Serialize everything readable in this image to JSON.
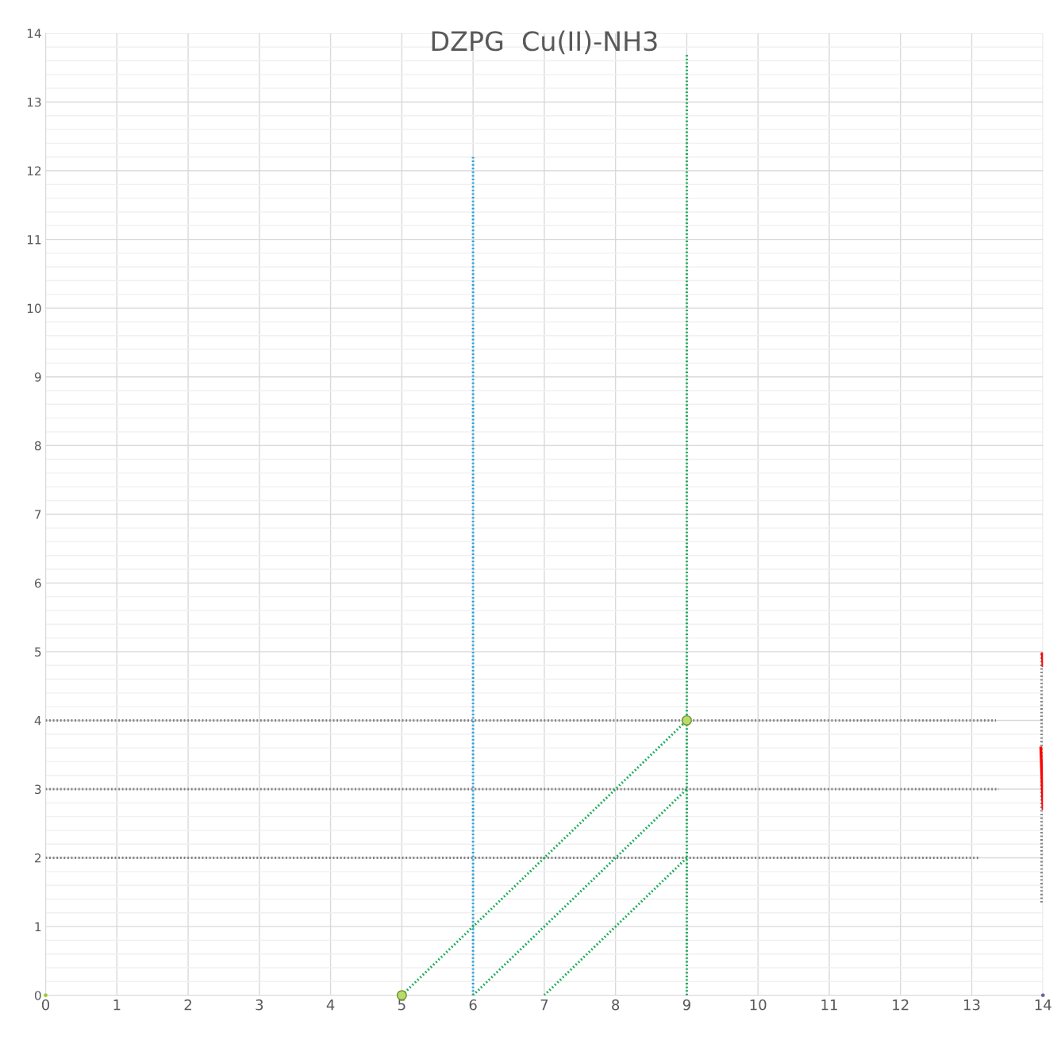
{
  "chart_data": {
    "type": "line",
    "title": "DZPG  Cu(II)-NH3",
    "xlim": [
      0,
      14
    ],
    "ylim": [
      0,
      14
    ],
    "xticks": [
      0,
      1,
      2,
      3,
      4,
      5,
      6,
      7,
      8,
      9,
      10,
      11,
      12,
      13,
      14
    ],
    "yticks": [
      0,
      {
        "value": 0.2,
        "label": null
      },
      {
        "value": 0.4,
        "label": null
      },
      {
        "value": 0.6,
        "label": null
      },
      {
        "value": 0.8,
        "label": null
      },
      1,
      {
        "value": 1.2,
        "label": null
      },
      {
        "value": 1.4,
        "label": null
      },
      {
        "value": 1.6,
        "label": null
      },
      {
        "value": 1.8,
        "label": null
      },
      2,
      {
        "value": 2.2,
        "label": null
      },
      {
        "value": 2.4,
        "label": null
      },
      {
        "value": 2.6,
        "label": null
      },
      {
        "value": 2.8,
        "label": null
      },
      3,
      {
        "value": 3.2,
        "label": null
      },
      {
        "value": 3.4,
        "label": null
      },
      {
        "value": 3.6,
        "label": null
      },
      {
        "value": 3.8,
        "label": null
      },
      4,
      {
        "value": 4.2,
        "label": null
      },
      {
        "value": 4.4,
        "label": null
      },
      {
        "value": 4.6,
        "label": null
      },
      {
        "value": 4.8,
        "label": null
      },
      5,
      {
        "value": 5.2,
        "label": null
      },
      {
        "value": 5.4,
        "label": null
      },
      {
        "value": 5.6,
        "label": null
      },
      {
        "value": 5.8,
        "label": null
      },
      6,
      {
        "value": 6.2,
        "label": null
      },
      {
        "value": 6.4,
        "label": null
      },
      {
        "value": 6.6,
        "label": null
      },
      {
        "value": 6.8,
        "label": null
      },
      7,
      {
        "value": 7.2,
        "label": null
      },
      {
        "value": 7.4,
        "label": null
      },
      {
        "value": 7.6,
        "label": null
      },
      {
        "value": 7.8,
        "label": null
      },
      8,
      {
        "value": 8.2,
        "label": null
      },
      {
        "value": 8.4,
        "label": null
      },
      {
        "value": 8.6,
        "label": null
      },
      {
        "value": 8.8,
        "label": null
      },
      9,
      {
        "value": 9.2,
        "label": null
      },
      {
        "value": 9.4,
        "label": null
      },
      {
        "value": 9.6,
        "label": null
      },
      {
        "value": 9.8,
        "label": null
      },
      10,
      {
        "value": 10.2,
        "label": null
      },
      {
        "value": 10.4,
        "label": null
      },
      {
        "value": 10.6,
        "label": null
      },
      {
        "value": 10.8,
        "label": null
      },
      11,
      {
        "value": 11.2,
        "label": null
      },
      {
        "value": 11.4,
        "label": null
      },
      {
        "value": 11.6,
        "label": null
      },
      {
        "value": 11.8,
        "label": null
      },
      12,
      {
        "value": 12.2,
        "label": null
      },
      {
        "value": 12.4,
        "label": null
      },
      {
        "value": 12.6,
        "label": null
      },
      {
        "value": 12.8,
        "label": null
      },
      13,
      {
        "value": 13.2,
        "label": null
      },
      {
        "value": 13.4,
        "label": null
      },
      {
        "value": 13.6,
        "label": null
      },
      {
        "value": 13.8,
        "label": null
      },
      14
    ],
    "grid": true,
    "series": [
      {
        "type": "line",
        "color": "#808080",
        "line_style": "dotted",
        "marker": "none",
        "x": [
          0,
          13.34
        ],
        "values": [
          4,
          4
        ]
      },
      {
        "type": "line",
        "color": "#808080",
        "line_style": "dotted",
        "marker": "none",
        "x": [
          0,
          13.38
        ],
        "values": [
          3,
          3
        ]
      },
      {
        "type": "line",
        "color": "#808080",
        "line_style": "dotted",
        "marker": "none",
        "x": [
          0,
          13.12
        ],
        "values": [
          2,
          2
        ]
      },
      {
        "type": "line",
        "color": "#808080",
        "line_style": "dotted",
        "marker": "none",
        "x": [
          13.98,
          13.98
        ],
        "values": [
          1.35,
          4.99
        ]
      },
      {
        "type": "line",
        "color": "#1ba1e2",
        "line_style": "dotted",
        "marker": "none",
        "x": [
          6,
          6
        ],
        "values": [
          0,
          12.2
        ]
      },
      {
        "type": "line",
        "color": "#1aab5a",
        "line_style": "dotted",
        "marker": "none",
        "x": [
          9,
          9
        ],
        "values": [
          0,
          13.7
        ]
      },
      {
        "color": "#1aab5a",
        "line_style": "dotted",
        "marker": "none",
        "x": [
          5,
          9
        ],
        "values": [
          0,
          4
        ]
      },
      {
        "type": "scatter",
        "color": "#b8dc6c",
        "marker": "circle",
        "x": [
          5,
          9
        ],
        "values": [
          0,
          4
        ]
      },
      {
        "type": "line",
        "color": "#1aab5a",
        "line_style": "dotted",
        "marker": "none",
        "x": [
          6,
          9
        ],
        "values": [
          0,
          3
        ]
      },
      {
        "type": "line",
        "color": "#1aab5a",
        "line_style": "dotted",
        "marker": "none",
        "x": [
          7,
          9
        ],
        "values": [
          0,
          2
        ]
      },
      {
        "type": "line",
        "color": "#ff0000",
        "line_style": "solid",
        "marker": "none",
        "x": [
          13.99,
          14
        ],
        "values": [
          4.97,
          4.8
        ]
      },
      {
        "type": "line",
        "color": "#ff0000",
        "line_style": "solid",
        "marker": "none",
        "x": [
          13.97,
          14
        ],
        "values": [
          3.6,
          2.72
        ]
      },
      {
        "type": "scatter",
        "color": "#9acd32",
        "marker": "circle",
        "x": [
          0
        ],
        "values": [
          0
        ]
      },
      {
        "type": "scatter",
        "color": "#7060b0",
        "marker": "circle",
        "x": [
          14
        ],
        "values": [
          0
        ]
      }
    ]
  }
}
